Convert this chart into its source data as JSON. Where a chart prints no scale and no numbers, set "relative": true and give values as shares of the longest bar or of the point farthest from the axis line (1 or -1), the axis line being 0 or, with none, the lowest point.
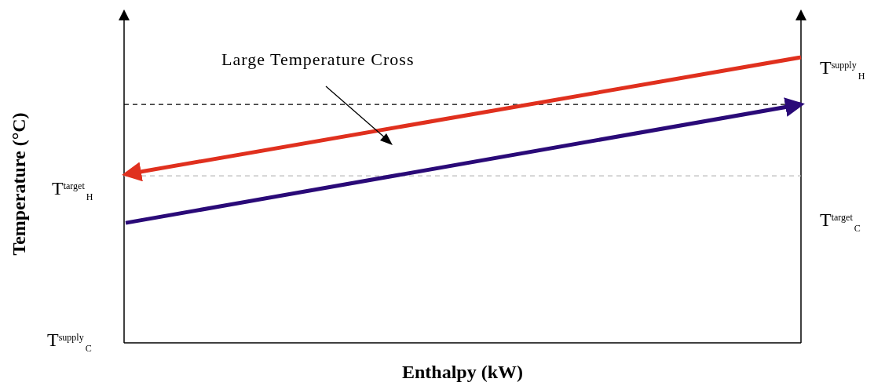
{
  "chart_data": {
    "type": "line",
    "relative": true,
    "xlabel": "Enthalpy (kW)",
    "ylabel": "Temperature (°C)",
    "categories": [
      null,
      null
    ],
    "series": [
      {
        "color": "#e0301e",
        "values": [
          0.59,
          1
        ]
      },
      {
        "color": "#2a0a78",
        "values": [
          0.42,
          0.835
        ]
      }
    ],
    "ref_lines": [
      {
        "axis": "y",
        "value": 0.835,
        "color": "#000000",
        "line_style": "dashed"
      },
      {
        "axis": "y",
        "value": 0.585,
        "color": "#bbbbbb",
        "line_style": "dashed"
      }
    ],
    "annotations": [
      "Large Temperature Cross",
      "T$^{supply}$$_{H}$",
      "T$^{target}$$_{H}$",
      "T$^{target}$$_{C}$",
      "T$^{supply}$$_{C}$"
    ],
    "grid": false,
    "legend": false,
    "marker": "none",
    "line_style": "solid"
  }
}
